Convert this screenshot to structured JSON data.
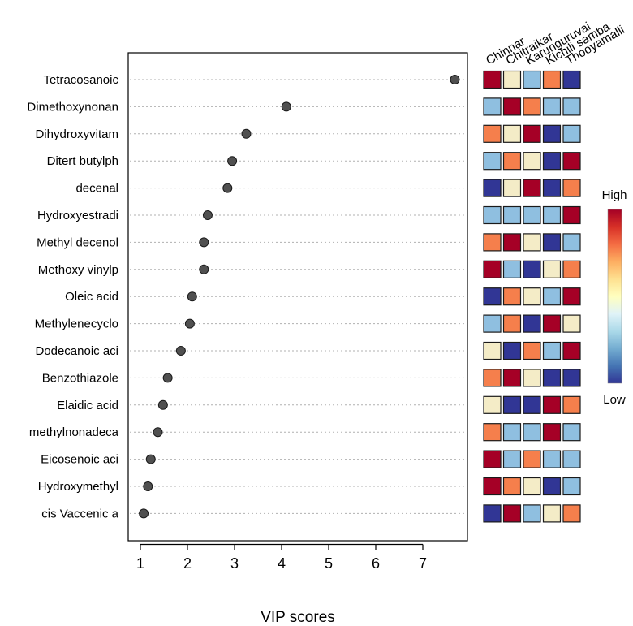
{
  "chart_data": {
    "type": "scatter",
    "subtype": "vip-score-dot-plot-with-heatmap",
    "xlabel": "VIP scores",
    "xlim": [
      0.8,
      7.9
    ],
    "xticks": [
      1,
      2,
      3,
      4,
      5,
      6,
      7
    ],
    "grid": "horizontal-dotted",
    "features": [
      "Tetracosanoic",
      "Dimethoxynonan",
      "Dihydroxyvitam",
      "Ditert butylph",
      "decenal",
      "Hydroxyestradi",
      "Methyl decenol",
      "Methoxy vinylp",
      "Oleic acid",
      "Methylenecyclo",
      "Dodecanoic aci",
      "Benzothiazole",
      "Elaidic acid",
      "methylnonadeca",
      "Eicosenoic aci",
      "Hydroxymethyl",
      "cis Vaccenic a"
    ],
    "vip_scores": [
      7.68,
      4.1,
      3.25,
      2.95,
      2.85,
      2.43,
      2.35,
      2.35,
      2.1,
      2.05,
      1.86,
      1.58,
      1.48,
      1.37,
      1.22,
      1.16,
      1.07
    ],
    "samples": [
      "Chinnar",
      "Chitraikar",
      "Karunguruvai",
      "Kichili samba",
      "Thooyamalli"
    ],
    "heatmap_levels": [
      [
        1.0,
        0.55,
        0.3,
        0.75,
        0.0
      ],
      [
        0.3,
        1.0,
        0.75,
        0.3,
        0.3
      ],
      [
        0.75,
        0.55,
        1.0,
        0.0,
        0.3
      ],
      [
        0.3,
        0.75,
        0.55,
        0.0,
        1.0
      ],
      [
        0.0,
        0.55,
        1.0,
        0.0,
        0.75
      ],
      [
        0.3,
        0.3,
        0.3,
        0.3,
        1.0
      ],
      [
        0.75,
        1.0,
        0.55,
        0.0,
        0.3
      ],
      [
        1.0,
        0.3,
        0.0,
        0.55,
        0.75
      ],
      [
        0.0,
        0.75,
        0.55,
        0.3,
        1.0
      ],
      [
        0.3,
        0.75,
        0.0,
        1.0,
        0.55
      ],
      [
        0.55,
        0.0,
        0.75,
        0.3,
        1.0
      ],
      [
        0.75,
        1.0,
        0.55,
        0.0,
        0.0
      ],
      [
        0.55,
        0.0,
        0.0,
        1.0,
        0.75
      ],
      [
        0.75,
        0.3,
        0.3,
        1.0,
        0.3
      ],
      [
        1.0,
        0.3,
        0.75,
        0.3,
        0.3
      ],
      [
        1.0,
        0.75,
        0.55,
        0.0,
        0.3
      ],
      [
        0.0,
        1.0,
        0.3,
        0.55,
        0.75
      ]
    ],
    "legend": {
      "high_label": "High",
      "low_label": "Low",
      "colors": [
        "#313695",
        "#4575b4",
        "#74add1",
        "#abd9e9",
        "#e0f3f8",
        "#ffffbf",
        "#fee090",
        "#fdae61",
        "#f46d43",
        "#d73027",
        "#a50026"
      ]
    },
    "cell_colors": {
      "0.0": "#313695",
      "0.3": "#8fbfe0",
      "0.55": "#f4ecc7",
      "0.75": "#f57f4c",
      "1.0": "#a50026"
    },
    "point_color": "#505050"
  }
}
